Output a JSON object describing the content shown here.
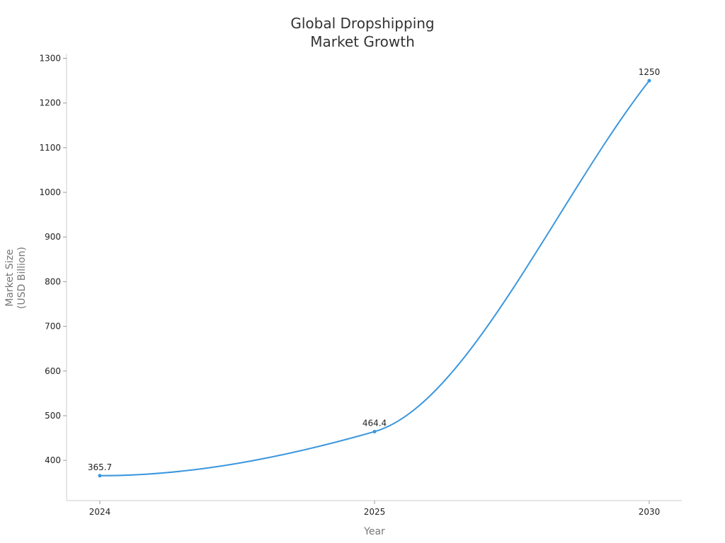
{
  "chart_data": {
    "type": "line",
    "title": "Global Dropshipping Market Growth",
    "title_lines": [
      "Global Dropshipping",
      "Market Growth"
    ],
    "xlabel": "Year",
    "ylabel": "Market Size (USD Billion)",
    "ylabel_lines": [
      "Market Size",
      "(USD Billion)"
    ],
    "categories": [
      "2024",
      "2025",
      "2030"
    ],
    "series": [
      {
        "values": [
          365.7,
          464.4,
          1250
        ],
        "data_labels": [
          "365.7",
          "464.4",
          "1250"
        ],
        "color": "#3b97de"
      }
    ],
    "ylim": [
      310,
      1300
    ],
    "yticks": [
      400,
      500,
      600,
      700,
      800,
      900,
      1000,
      1100,
      1200,
      1300
    ],
    "ytick_labels": [
      "400",
      "500",
      "600",
      "700",
      "800",
      "900",
      "1000",
      "1100",
      "1200",
      "1300"
    ],
    "grid": false,
    "smooth": true
  }
}
